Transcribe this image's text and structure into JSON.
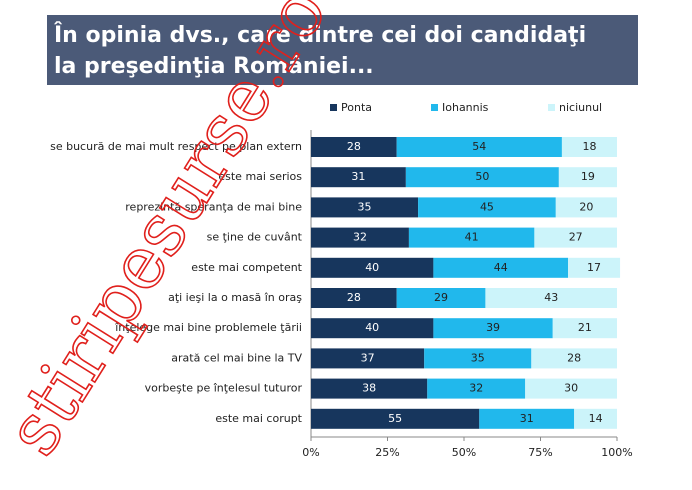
{
  "chart_data": {
    "type": "stacked-barh",
    "title": [
      "În opinia dvs., care dintre cei doi candidaţi",
      "la preşedinţia României..."
    ],
    "categories": [
      "se bucură de mai mult respect pe plan extern",
      "este mai serios",
      "reprezintă speranţa de mai bine",
      "se ţine de cuvânt",
      "este mai competent",
      "aţi ieşi la o masă în oraş",
      "înţelege mai bine problemele ţării",
      "arată cel mai bine la TV",
      "vorbeşte pe înţelesul tuturor",
      "este mai corupt"
    ],
    "series": [
      {
        "name": "Ponta",
        "color": "#17365d",
        "values": [
          28,
          31,
          35,
          32,
          40,
          28,
          40,
          37,
          38,
          55
        ]
      },
      {
        "name": "Iohannis",
        "color": "#21b8ec",
        "values": [
          54,
          50,
          45,
          41,
          44,
          29,
          39,
          35,
          32,
          31
        ]
      },
      {
        "name": "niciunul",
        "color": "#ccf4fa",
        "values": [
          18,
          19,
          20,
          27,
          17,
          43,
          21,
          28,
          30,
          14
        ]
      }
    ],
    "xlim": [
      0,
      100
    ],
    "xticks": [
      {
        "value": 0,
        "label": "0%"
      },
      {
        "value": 25,
        "label": "25%"
      },
      {
        "value": 50,
        "label": "50%"
      },
      {
        "value": 75,
        "label": "75%"
      },
      {
        "value": 100,
        "label": "100%"
      }
    ],
    "legend": "top",
    "watermark": "stiripesurse.ro"
  }
}
